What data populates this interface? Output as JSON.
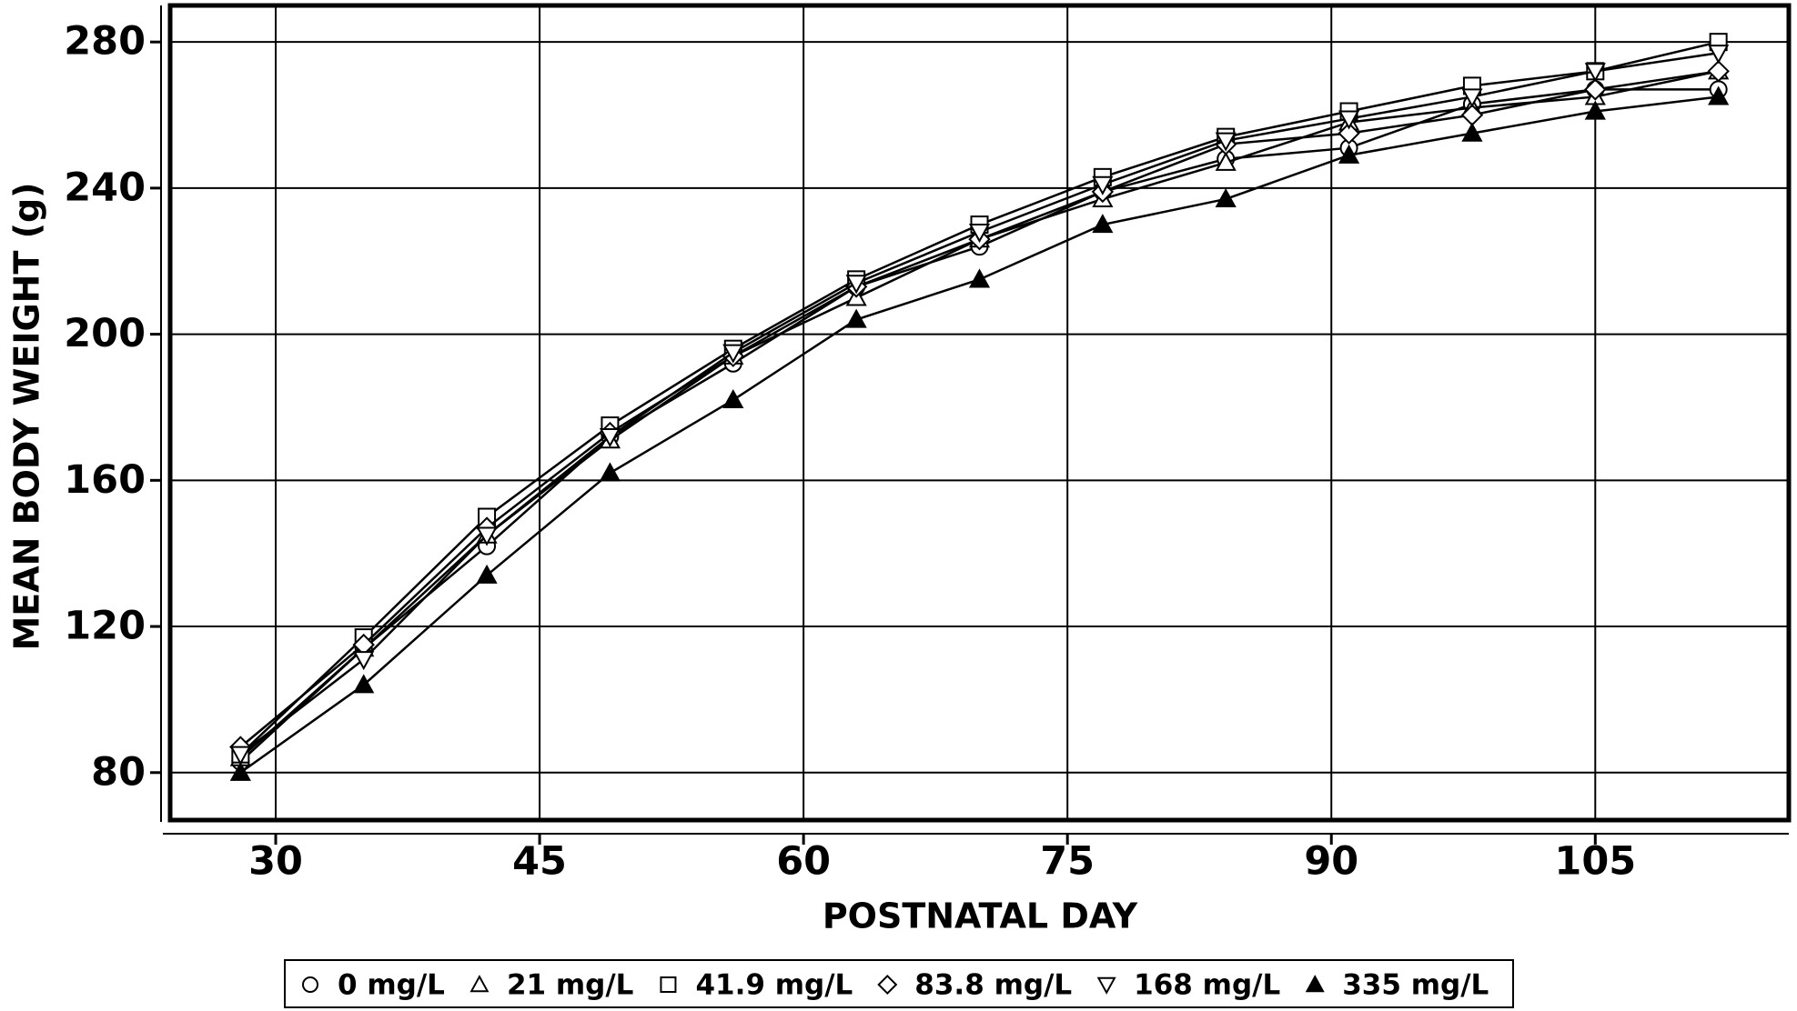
{
  "chart_data": {
    "type": "line",
    "x_label": "POSTNATAL DAY",
    "y_label": "MEAN BODY WEIGHT (g)",
    "x": [
      28,
      35,
      42,
      49,
      56,
      63,
      70,
      77,
      84,
      91,
      98,
      105,
      112
    ],
    "series": [
      {
        "name": "0 mg/L",
        "color": "#000000",
        "marker": "circle",
        "values": [
          83,
          114,
          142,
          172,
          192,
          213,
          224,
          239,
          248,
          251,
          263,
          267,
          267
        ]
      },
      {
        "name": "21 mg/L",
        "color": "#000000",
        "marker": "triangle",
        "values": [
          84,
          114,
          145,
          171,
          194,
          210,
          226,
          237,
          247,
          258,
          262,
          265,
          272
        ]
      },
      {
        "name": "41.9 mg/L",
        "color": "#000000",
        "marker": "square",
        "values": [
          85,
          117,
          150,
          175,
          196,
          215,
          230,
          243,
          254,
          261,
          268,
          272,
          280
        ]
      },
      {
        "name": "83.8 mg/L",
        "color": "#000000",
        "marker": "diamond",
        "values": [
          87,
          115,
          147,
          173,
          194,
          213,
          226,
          239,
          252,
          255,
          260,
          267,
          272
        ]
      },
      {
        "name": "168 mg/L",
        "color": "#000000",
        "marker": "triangle-down",
        "values": [
          85,
          111,
          145,
          172,
          195,
          214,
          228,
          241,
          253,
          259,
          265,
          272,
          277
        ]
      },
      {
        "name": "335 mg/L",
        "color": "#000000",
        "marker": "triangle-filled",
        "values": [
          80,
          104,
          134,
          162,
          182,
          204,
          215,
          230,
          237,
          249,
          255,
          261,
          265
        ]
      }
    ],
    "xlim": [
      24,
      116
    ],
    "xticks": [
      30,
      45,
      60,
      75,
      90,
      105
    ],
    "ylim": [
      67,
      290
    ],
    "yticks": [
      80,
      120,
      160,
      200,
      240,
      280
    ],
    "grid": true,
    "legend": "bottom"
  }
}
